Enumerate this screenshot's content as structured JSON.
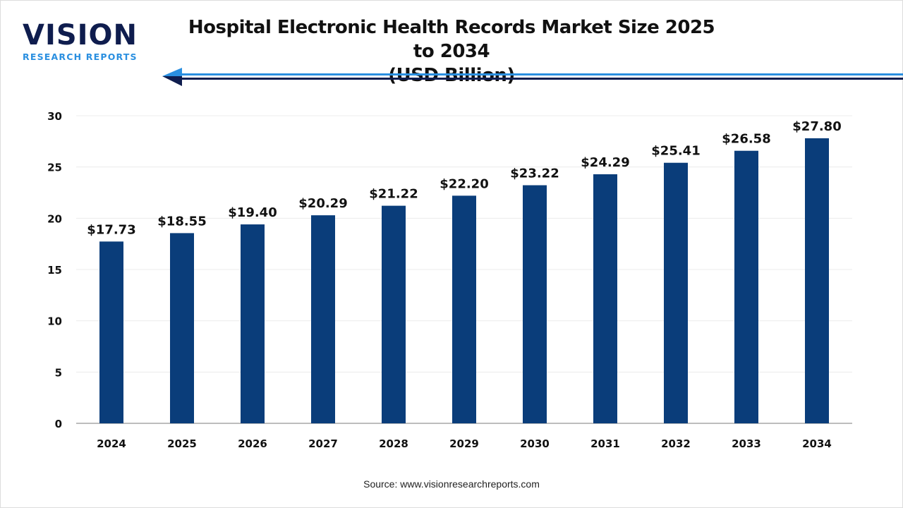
{
  "logo": {
    "word": "VISION",
    "sub": "RESEARCH REPORTS"
  },
  "title_line1": "Hospital Electronic Health Records Market Size 2025 to 2034",
  "title_line2": "(USD Billion)",
  "source": "Source: www.visionresearchreports.com",
  "colors": {
    "bar": "#0a3d7a",
    "arrow_light": "#2a8fe0",
    "arrow_dark": "#0f1d4e"
  },
  "chart_data": {
    "type": "bar",
    "title": "Hospital Electronic Health Records Market Size 2025 to 2034 (USD Billion)",
    "categories": [
      "2024",
      "2025",
      "2026",
      "2027",
      "2028",
      "2029",
      "2030",
      "2031",
      "2032",
      "2033",
      "2034"
    ],
    "values": [
      17.73,
      18.55,
      19.4,
      20.29,
      21.22,
      22.2,
      23.22,
      24.29,
      25.41,
      26.58,
      27.8
    ],
    "data_labels": [
      "$17.73",
      "$18.55",
      "$19.40",
      "$20.29",
      "$21.22",
      "$22.20",
      "$23.22",
      "$24.29",
      "$25.41",
      "$26.58",
      "$27.80"
    ],
    "yticks": [
      0,
      5,
      10,
      15,
      20,
      25,
      30
    ],
    "ylim": [
      0,
      30
    ],
    "grid": true,
    "xlabel": "",
    "ylabel": ""
  }
}
